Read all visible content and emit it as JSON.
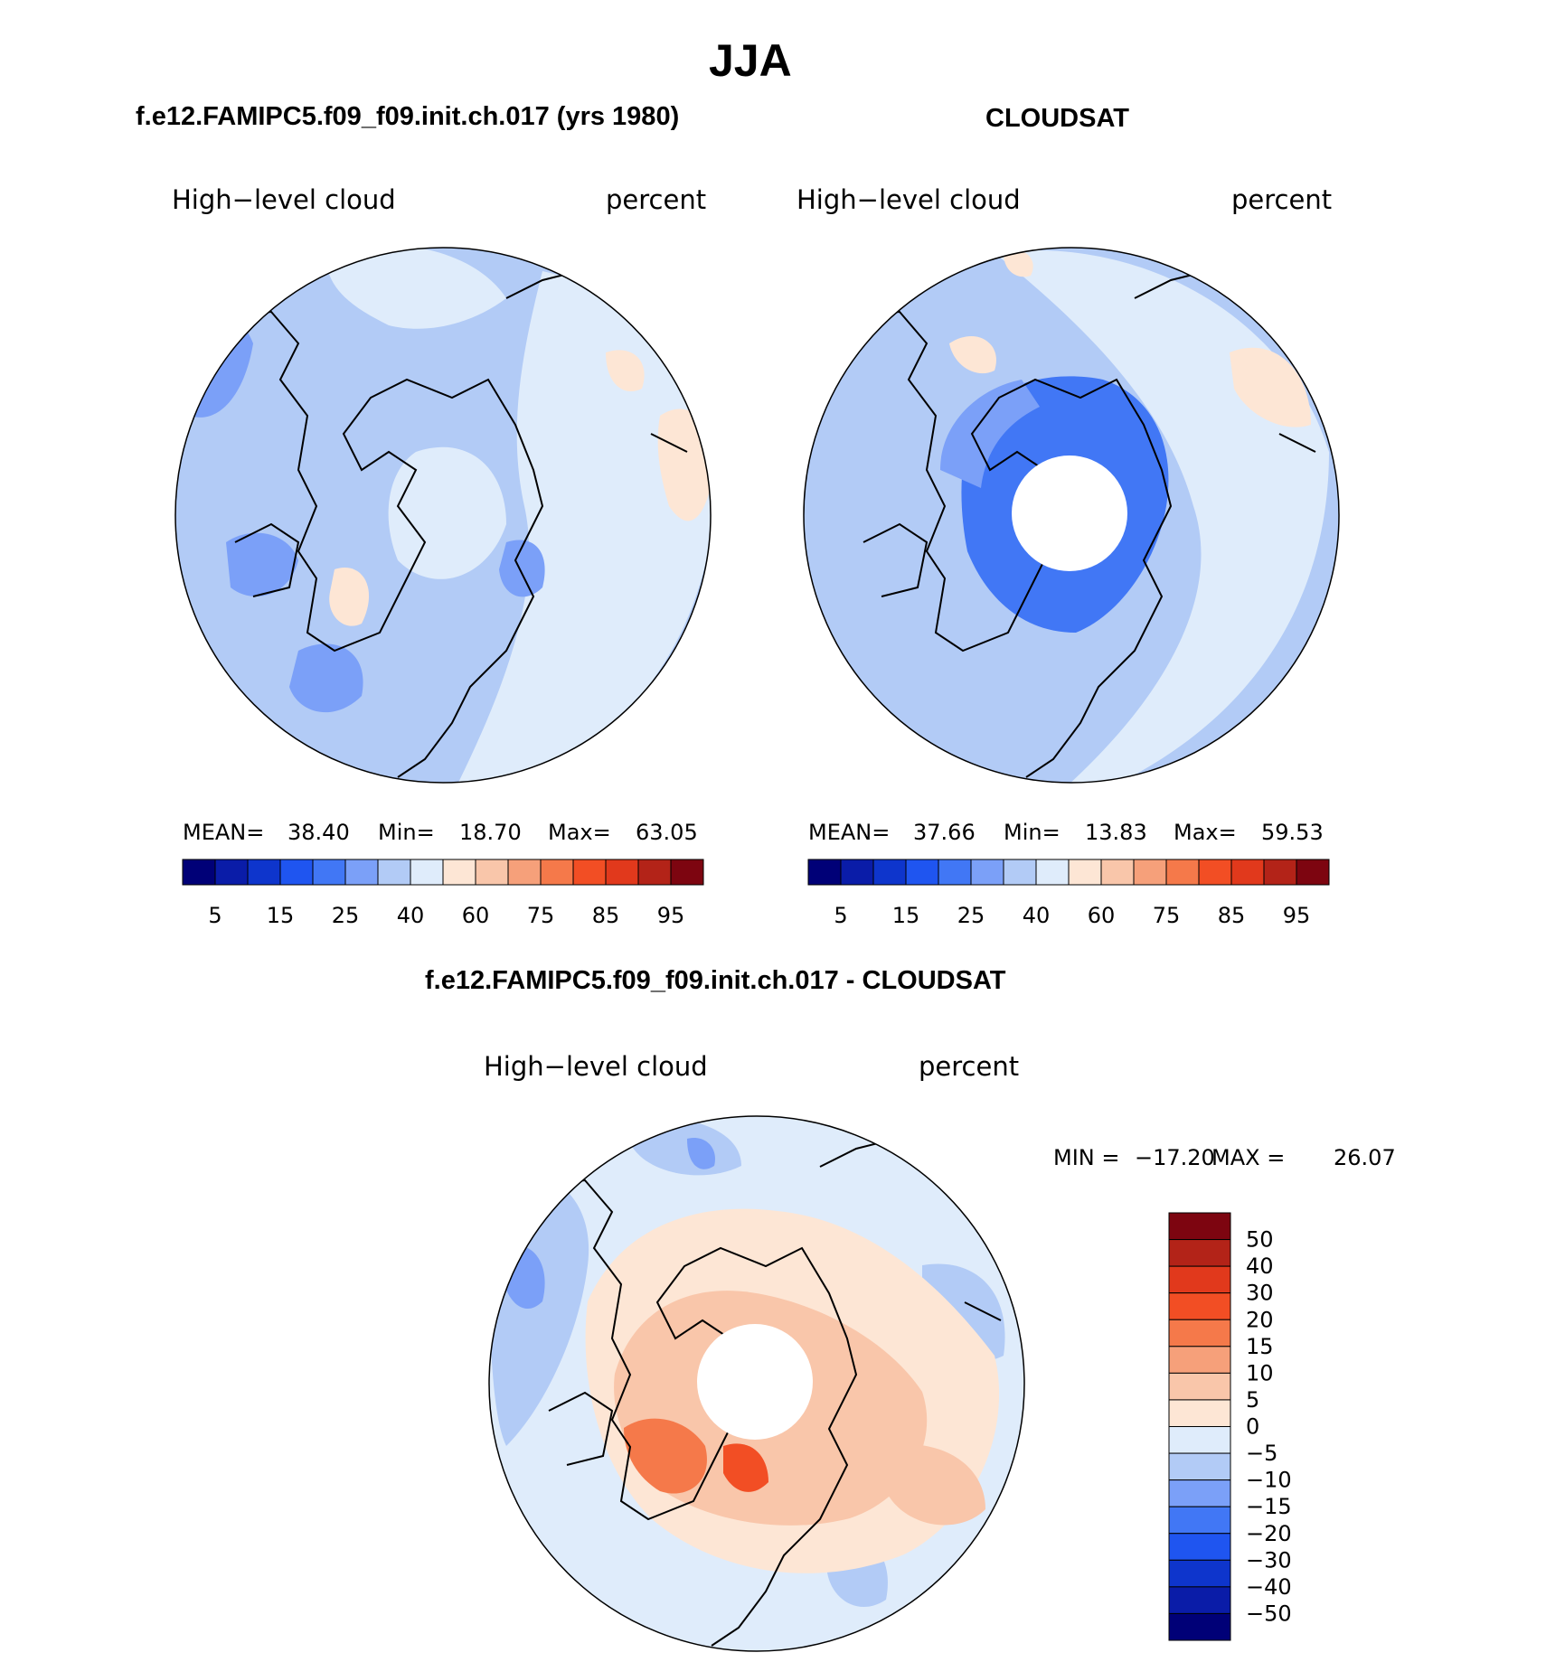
{
  "page_title": "JJA",
  "panels": [
    {
      "title": "f.e12.FAMIPC5.f09_f09.init.ch.017 (yrs 1980)",
      "left_label": "High−level cloud",
      "right_label": "percent",
      "stats": {
        "mean_label": "MEAN=",
        "mean": "38.40",
        "min_label": "Min=",
        "min": "18.70",
        "max_label": "Max=",
        "max": "63.05"
      },
      "polar_hole": false
    },
    {
      "title": "CLOUDSAT",
      "left_label": "High−level cloud",
      "right_label": "percent",
      "stats": {
        "mean_label": "MEAN=",
        "mean": "37.66",
        "min_label": "Min=",
        "min": "13.83",
        "max_label": "Max=",
        "max": "59.53"
      },
      "polar_hole": true
    },
    {
      "title": "f.e12.FAMIPC5.f09_f09.init.ch.017 - CLOUDSAT",
      "left_label": "High−level cloud",
      "right_label": "percent",
      "stats": {
        "min_label": "MIN =",
        "min": "−17.20",
        "max_label": "MAX =",
        "max": "26.07"
      },
      "polar_hole": true
    }
  ],
  "abs_colorbar": {
    "colors": [
      "#000077",
      "#0a1ca8",
      "#0e35cc",
      "#1f55f0",
      "#4177f5",
      "#7ba0f8",
      "#b2cbf6",
      "#dfecfb",
      "#fde6d5",
      "#f9c6aa",
      "#f6a07a",
      "#f5794a",
      "#f24e24",
      "#e1391c",
      "#b32318",
      "#7d0510"
    ],
    "tick_labels": [
      "5",
      "15",
      "25",
      "40",
      "60",
      "75",
      "85",
      "95"
    ]
  },
  "diff_colorbar": {
    "colors_top_to_bottom": [
      "#7d0510",
      "#b32318",
      "#e1391c",
      "#f24e24",
      "#f5794a",
      "#f6a07a",
      "#f9c6aa",
      "#fde6d5",
      "#dfecfb",
      "#b2cbf6",
      "#7ba0f8",
      "#4177f5",
      "#1f55f0",
      "#0e35cc",
      "#0a1ca8",
      "#000077"
    ],
    "tick_labels": [
      "50",
      "40",
      "30",
      "20",
      "15",
      "10",
      "5",
      "0",
      "−5",
      "−10",
      "−15",
      "−20",
      "−30",
      "−40",
      "−50"
    ]
  },
  "map_colors": {
    "base_abs": "#b2cbf6",
    "base_diff": "#dfecfb",
    "coast": "#000000"
  }
}
